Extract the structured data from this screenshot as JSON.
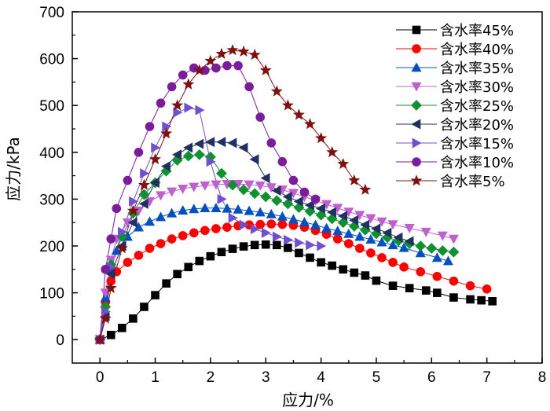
{
  "chart_data": {
    "type": "line",
    "xlabel": "应力/%",
    "ylabel": "应力/kPa",
    "xlim": [
      -0.5,
      8
    ],
    "ylim": [
      -50,
      700
    ],
    "xticks": [
      "0",
      "1",
      "2",
      "3",
      "4",
      "5",
      "6",
      "7",
      "8"
    ],
    "yticks": [
      "0",
      "100",
      "200",
      "300",
      "400",
      "500",
      "600",
      "700"
    ],
    "legend_position": "top-right",
    "grid": false,
    "series": [
      {
        "name": "含水率45%",
        "color": "#000000",
        "marker": "square",
        "x": [
          0,
          0.2,
          0.4,
          0.6,
          0.8,
          1.0,
          1.2,
          1.4,
          1.6,
          1.8,
          2.0,
          2.2,
          2.4,
          2.6,
          2.8,
          3.0,
          3.2,
          3.4,
          3.6,
          3.8,
          4.0,
          4.2,
          4.4,
          4.6,
          4.8,
          5.0,
          5.3,
          5.6,
          5.9,
          6.1,
          6.4,
          6.7,
          6.9,
          7.1
        ],
        "y": [
          0,
          10,
          25,
          45,
          70,
          95,
          120,
          140,
          155,
          168,
          178,
          187,
          194,
          199,
          202,
          203,
          202,
          196,
          185,
          175,
          165,
          158,
          150,
          143,
          137,
          126,
          115,
          110,
          105,
          100,
          90,
          86,
          84,
          82
        ]
      },
      {
        "name": "含水率40%",
        "color": "#ff0000",
        "marker": "circle",
        "x": [
          0,
          0.1,
          0.2,
          0.3,
          0.5,
          0.7,
          0.9,
          1.1,
          1.3,
          1.5,
          1.7,
          1.9,
          2.1,
          2.3,
          2.5,
          2.7,
          2.9,
          3.1,
          3.3,
          3.5,
          3.7,
          3.9,
          4.1,
          4.3,
          4.5,
          4.7,
          4.9,
          5.1,
          5.3,
          5.5,
          5.8,
          6.1,
          6.4,
          6.7,
          7.0
        ],
        "y": [
          0,
          80,
          125,
          145,
          165,
          180,
          195,
          205,
          215,
          222,
          228,
          233,
          237,
          240,
          243,
          245,
          246,
          247,
          246,
          244,
          240,
          233,
          225,
          215,
          205,
          195,
          185,
          175,
          165,
          155,
          145,
          135,
          125,
          115,
          108
        ]
      },
      {
        "name": "含水率35%",
        "color": "#0050c0",
        "marker": "triangle-up",
        "x": [
          0,
          0.1,
          0.2,
          0.3,
          0.5,
          0.7,
          0.9,
          1.1,
          1.3,
          1.5,
          1.7,
          1.9,
          2.1,
          2.3,
          2.5,
          2.7,
          2.9,
          3.1,
          3.3,
          3.5,
          3.7,
          3.9,
          4.1,
          4.3,
          4.5,
          4.7,
          4.9,
          5.1,
          5.3,
          5.5,
          5.8,
          6.1,
          6.3
        ],
        "y": [
          0,
          90,
          150,
          190,
          220,
          240,
          252,
          262,
          270,
          276,
          279,
          281,
          281,
          280,
          278,
          275,
          272,
          268,
          263,
          257,
          251,
          245,
          238,
          232,
          226,
          220,
          214,
          208,
          202,
          196,
          185,
          175,
          168
        ]
      },
      {
        "name": "含水率30%",
        "color": "#c060d0",
        "marker": "triangle-down",
        "x": [
          0,
          0.1,
          0.2,
          0.3,
          0.5,
          0.7,
          0.9,
          1.1,
          1.3,
          1.5,
          1.7,
          1.9,
          2.1,
          2.3,
          2.5,
          2.7,
          2.9,
          3.1,
          3.3,
          3.5,
          3.7,
          3.9,
          4.1,
          4.3,
          4.5,
          4.7,
          4.9,
          5.1,
          5.3,
          5.6,
          5.9,
          6.2,
          6.4
        ],
        "y": [
          0,
          100,
          170,
          215,
          250,
          275,
          295,
          308,
          316,
          322,
          326,
          329,
          331,
          332,
          332,
          331,
          329,
          325,
          320,
          313,
          305,
          297,
          289,
          281,
          273,
          266,
          259,
          252,
          246,
          238,
          230,
          222,
          215
        ]
      },
      {
        "name": "含水率25%",
        "color": "#109030",
        "marker": "diamond",
        "x": [
          0,
          0.1,
          0.2,
          0.4,
          0.6,
          0.8,
          1.0,
          1.2,
          1.4,
          1.6,
          1.8,
          2.0,
          2.2,
          2.4,
          2.6,
          2.8,
          3.0,
          3.2,
          3.4,
          3.6,
          3.8,
          4.0,
          4.2,
          4.4,
          4.6,
          4.8,
          5.0,
          5.2,
          5.4,
          5.6,
          5.8,
          6.0,
          6.2,
          6.4
        ],
        "y": [
          0,
          70,
          160,
          220,
          270,
          310,
          335,
          360,
          383,
          392,
          395,
          390,
          355,
          330,
          320,
          312,
          305,
          297,
          290,
          282,
          274,
          266,
          258,
          250,
          242,
          234,
          226,
          218,
          211,
          205,
          200,
          195,
          190,
          187
        ]
      },
      {
        "name": "含水率20%",
        "color": "#203060",
        "marker": "triangle-left",
        "x": [
          0,
          0.1,
          0.2,
          0.4,
          0.6,
          0.8,
          1.0,
          1.2,
          1.4,
          1.6,
          1.8,
          2.0,
          2.2,
          2.4,
          2.6,
          2.8,
          3.0,
          3.2,
          3.4,
          3.6,
          3.8,
          4.0,
          4.2,
          4.4,
          4.6,
          4.8,
          5.0,
          5.2,
          5.4,
          5.6
        ],
        "y": [
          0,
          50,
          140,
          200,
          250,
          290,
          335,
          370,
          395,
          410,
          418,
          422,
          422,
          420,
          410,
          385,
          345,
          318,
          305,
          295,
          287,
          280,
          272,
          264,
          255,
          245,
          237,
          228,
          218,
          210
        ]
      },
      {
        "name": "含水率15%",
        "color": "#7050d0",
        "marker": "triangle-right",
        "x": [
          0,
          0.1,
          0.2,
          0.4,
          0.6,
          0.8,
          1.0,
          1.2,
          1.4,
          1.6,
          1.8,
          2.0,
          2.2,
          2.4,
          2.6,
          2.8,
          3.0,
          3.2,
          3.4,
          3.6,
          3.8,
          4.0
        ],
        "y": [
          0,
          60,
          155,
          230,
          295,
          355,
          410,
          455,
          485,
          495,
          490,
          380,
          300,
          260,
          245,
          236,
          228,
          220,
          213,
          207,
          202,
          200
        ]
      },
      {
        "name": "含水率10%",
        "color": "#7a1c9c",
        "marker": "circle",
        "x": [
          0,
          0.1,
          0.2,
          0.3,
          0.5,
          0.7,
          0.9,
          1.1,
          1.3,
          1.5,
          1.7,
          1.9,
          2.1,
          2.3,
          2.5,
          2.7,
          2.9,
          3.1,
          3.3,
          3.5,
          3.7,
          3.9
        ],
        "y": [
          0,
          150,
          215,
          280,
          340,
          400,
          455,
          505,
          540,
          565,
          580,
          575,
          580,
          585,
          585,
          540,
          475,
          420,
          380,
          340,
          315,
          300
        ]
      },
      {
        "name": "含水率5%",
        "color": "#801010",
        "marker": "star",
        "x": [
          0,
          0.1,
          0.2,
          0.4,
          0.6,
          0.8,
          1.0,
          1.2,
          1.4,
          1.6,
          1.8,
          2.0,
          2.2,
          2.4,
          2.6,
          2.8,
          3.0,
          3.2,
          3.4,
          3.6,
          3.8,
          4.0,
          4.2,
          4.4,
          4.6,
          4.8
        ],
        "y": [
          0,
          45,
          110,
          195,
          275,
          330,
          385,
          440,
          500,
          545,
          575,
          595,
          610,
          618,
          615,
          608,
          575,
          530,
          500,
          480,
          460,
          430,
          400,
          375,
          340,
          320
        ]
      }
    ]
  }
}
